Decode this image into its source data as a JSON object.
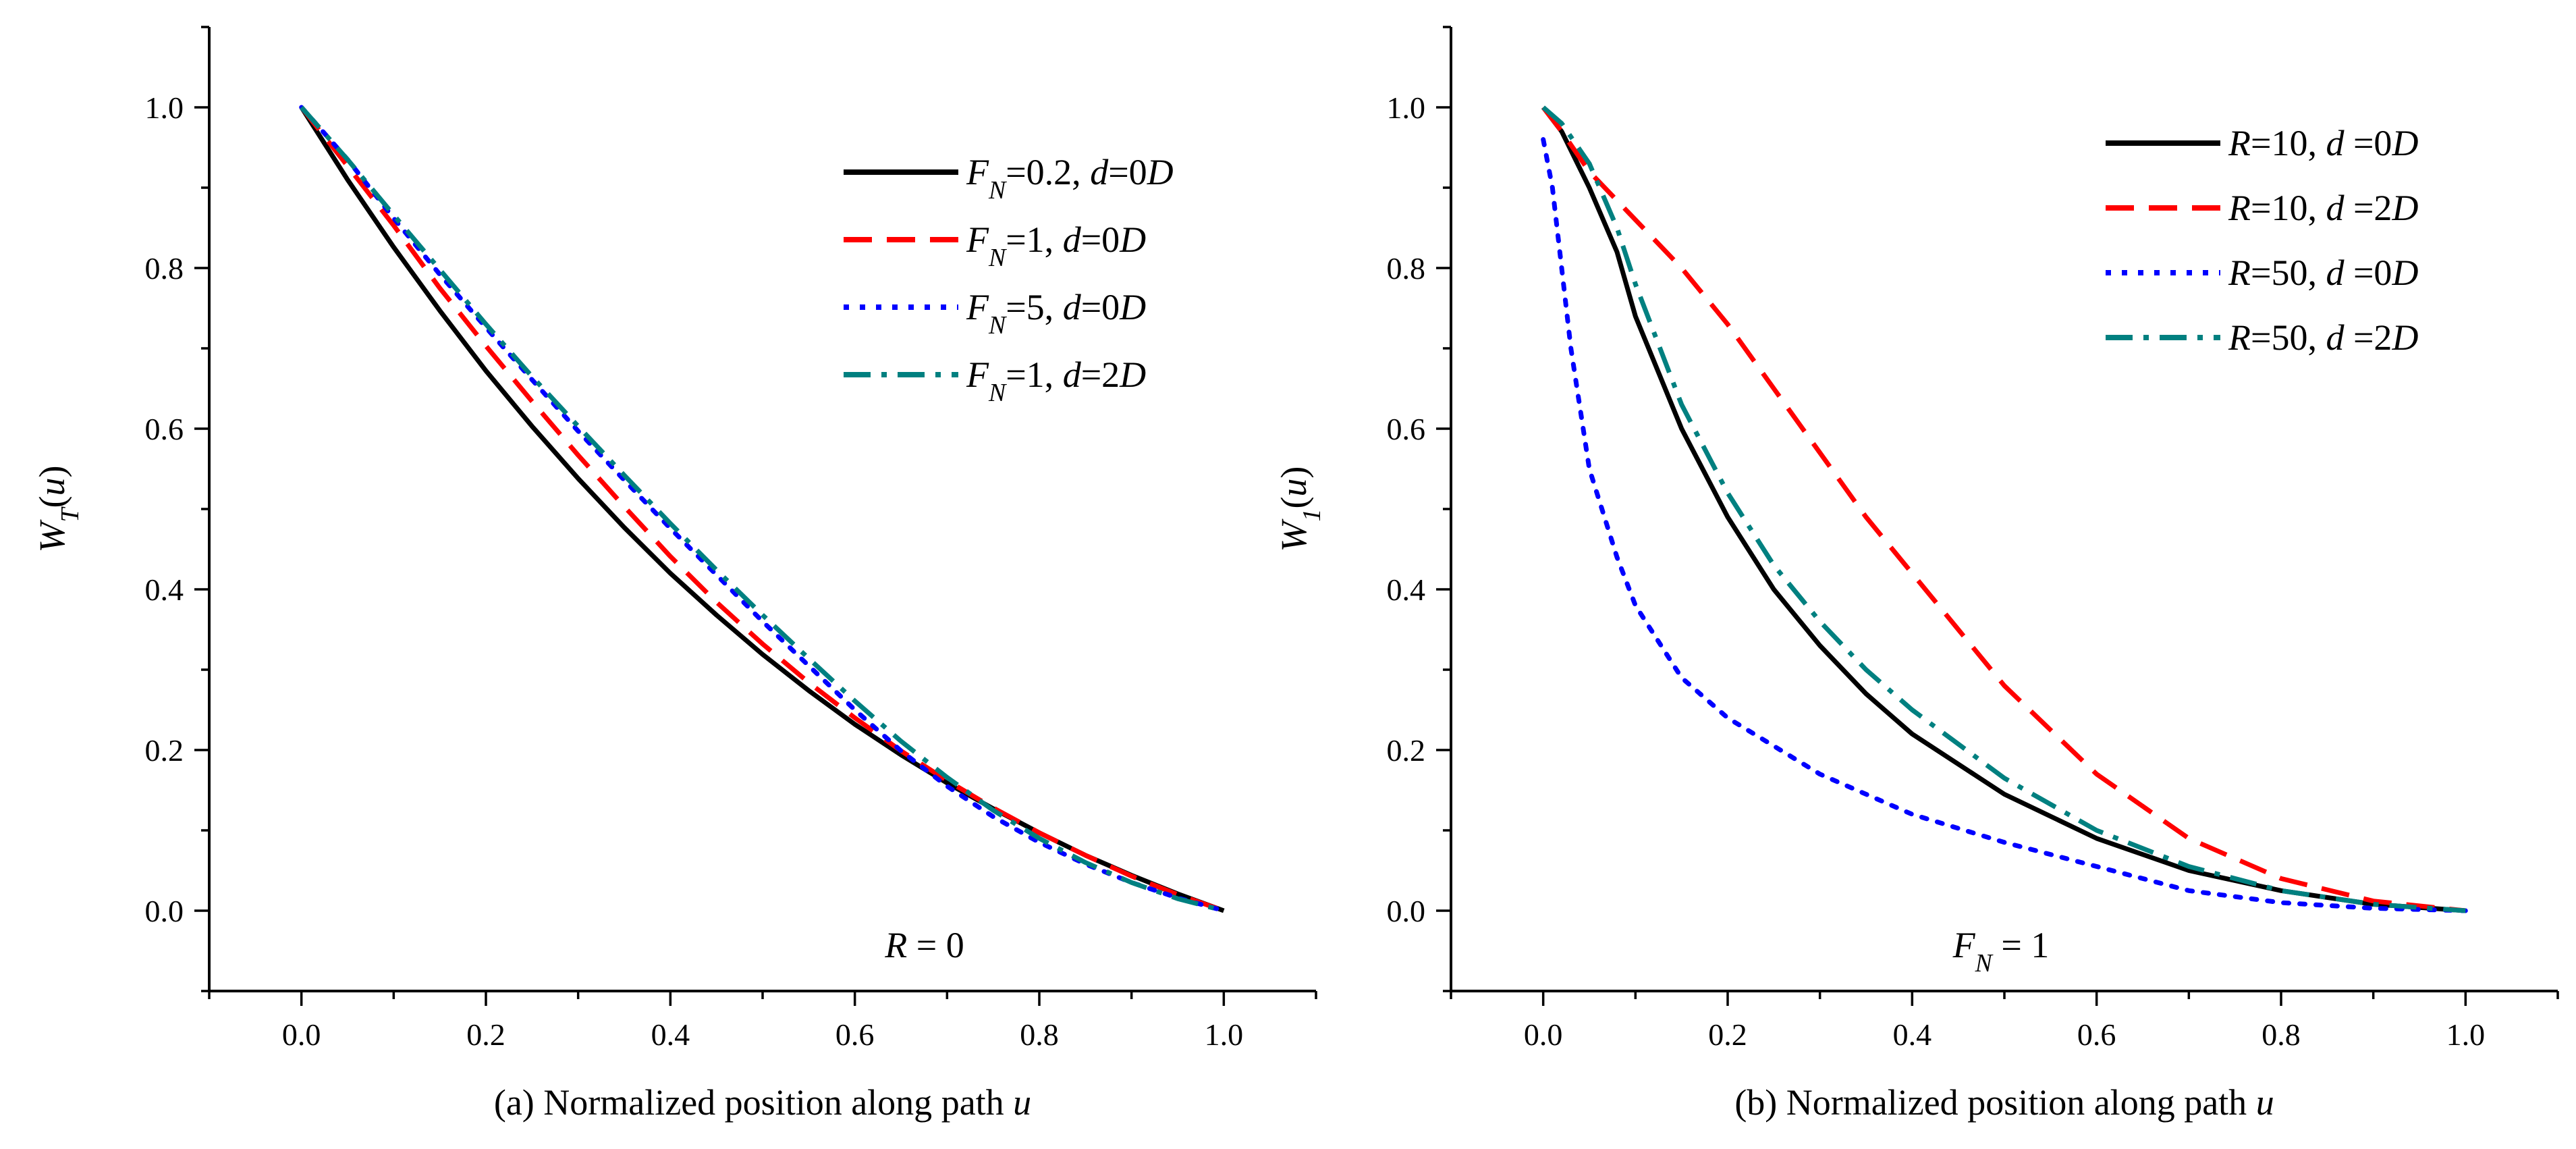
{
  "chart_data": [
    {
      "type": "line",
      "panel": "a",
      "xlabel": "(a) Normalized position along path u",
      "ylabel": "W_T(u)",
      "xlim": [
        -0.1,
        1.1
      ],
      "ylim": [
        -0.1,
        1.1
      ],
      "xticks": [
        "0.0",
        "0.2",
        "0.4",
        "0.6",
        "0.8",
        "1.0"
      ],
      "yticks": [
        "0.0",
        "0.2",
        "0.4",
        "0.6",
        "0.8",
        "1.0"
      ],
      "grid": false,
      "legend_position": "top-right",
      "annotation": "R = 0",
      "series": [
        {
          "name": "F_N=0.2, d=0D",
          "color": "#000000",
          "dash": "solid",
          "x": [
            0,
            0.05,
            0.1,
            0.15,
            0.2,
            0.25,
            0.3,
            0.35,
            0.4,
            0.45,
            0.5,
            0.55,
            0.6,
            0.65,
            0.7,
            0.75,
            0.8,
            0.85,
            0.9,
            0.95,
            1.0
          ],
          "y": [
            1.0,
            0.91,
            0.826,
            0.747,
            0.672,
            0.603,
            0.538,
            0.477,
            0.42,
            0.368,
            0.319,
            0.274,
            0.232,
            0.194,
            0.159,
            0.127,
            0.097,
            0.069,
            0.044,
            0.021,
            0.0
          ]
        },
        {
          "name": "F_N=1, d=0D",
          "color": "#ff0000",
          "dash": "dash",
          "x": [
            0,
            0.05,
            0.1,
            0.15,
            0.2,
            0.25,
            0.3,
            0.35,
            0.4,
            0.45,
            0.5,
            0.55,
            0.6,
            0.65,
            0.7,
            0.75,
            0.8,
            0.85,
            0.9,
            0.95,
            1.0
          ],
          "y": [
            1.0,
            0.927,
            0.853,
            0.775,
            0.703,
            0.634,
            0.567,
            0.503,
            0.441,
            0.384,
            0.332,
            0.284,
            0.24,
            0.199,
            0.162,
            0.128,
            0.097,
            0.069,
            0.043,
            0.02,
            0.0
          ]
        },
        {
          "name": "F_N=5, d=0D",
          "color": "#0000ff",
          "dash": "dot",
          "x": [
            0,
            0.05,
            0.1,
            0.15,
            0.2,
            0.25,
            0.3,
            0.35,
            0.4,
            0.45,
            0.5,
            0.55,
            0.6,
            0.65,
            0.7,
            0.75,
            0.8,
            0.85,
            0.9,
            0.95,
            1.0
          ],
          "y": [
            1.0,
            0.935,
            0.862,
            0.792,
            0.726,
            0.661,
            0.597,
            0.536,
            0.476,
            0.418,
            0.36,
            0.305,
            0.25,
            0.199,
            0.155,
            0.117,
            0.085,
            0.058,
            0.035,
            0.016,
            0.0
          ]
        },
        {
          "name": "F_N=1, d=2D",
          "color": "#008080",
          "dash": "dashdot",
          "x": [
            0,
            0.05,
            0.1,
            0.15,
            0.2,
            0.25,
            0.3,
            0.35,
            0.4,
            0.45,
            0.5,
            0.55,
            0.6,
            0.65,
            0.7,
            0.75,
            0.8,
            0.85,
            0.9,
            0.95,
            1.0
          ],
          "y": [
            1.0,
            0.935,
            0.866,
            0.798,
            0.73,
            0.665,
            0.603,
            0.542,
            0.482,
            0.424,
            0.368,
            0.314,
            0.261,
            0.211,
            0.166,
            0.125,
            0.09,
            0.06,
            0.035,
            0.015,
            0.0
          ]
        }
      ]
    },
    {
      "type": "line",
      "panel": "b",
      "xlabel": "(b) Normalized position along path u",
      "ylabel": "W_1(u)",
      "xlim": [
        -0.1,
        1.1
      ],
      "ylim": [
        -0.1,
        1.1
      ],
      "xticks": [
        "0.0",
        "0.2",
        "0.4",
        "0.6",
        "0.8",
        "1.0"
      ],
      "yticks": [
        "0.0",
        "0.2",
        "0.4",
        "0.6",
        "0.8",
        "1.0"
      ],
      "grid": false,
      "legend_position": "top-right",
      "annotation": "F_N = 1",
      "series": [
        {
          "name": "R=10, d =0D",
          "color": "#000000",
          "dash": "solid",
          "x": [
            0,
            0.02,
            0.05,
            0.08,
            0.1,
            0.15,
            0.2,
            0.25,
            0.3,
            0.35,
            0.4,
            0.5,
            0.6,
            0.7,
            0.8,
            0.9,
            1.0
          ],
          "y": [
            1.0,
            0.97,
            0.9,
            0.82,
            0.74,
            0.6,
            0.49,
            0.4,
            0.33,
            0.27,
            0.22,
            0.145,
            0.09,
            0.05,
            0.025,
            0.008,
            0.0
          ]
        },
        {
          "name": "R=10, d =2D",
          "color": "#ff0000",
          "dash": "dash",
          "x": [
            0,
            0.02,
            0.05,
            0.1,
            0.15,
            0.2,
            0.25,
            0.3,
            0.35,
            0.4,
            0.45,
            0.5,
            0.6,
            0.7,
            0.8,
            0.9,
            1.0
          ],
          "y": [
            1.0,
            0.97,
            0.92,
            0.86,
            0.8,
            0.73,
            0.65,
            0.57,
            0.49,
            0.42,
            0.35,
            0.28,
            0.17,
            0.09,
            0.04,
            0.012,
            0.0
          ]
        },
        {
          "name": "R=50, d =0D",
          "color": "#0000ff",
          "dash": "dot",
          "x": [
            0,
            0.01,
            0.02,
            0.03,
            0.05,
            0.08,
            0.1,
            0.15,
            0.2,
            0.3,
            0.4,
            0.5,
            0.6,
            0.7,
            0.8,
            0.9,
            1.0
          ],
          "y": [
            0.96,
            0.9,
            0.8,
            0.7,
            0.55,
            0.44,
            0.38,
            0.29,
            0.24,
            0.17,
            0.12,
            0.085,
            0.055,
            0.025,
            0.01,
            0.003,
            0.0
          ]
        },
        {
          "name": "R=50, d =2D",
          "color": "#008080",
          "dash": "dashdot",
          "x": [
            0,
            0.02,
            0.05,
            0.08,
            0.1,
            0.15,
            0.2,
            0.25,
            0.3,
            0.35,
            0.4,
            0.5,
            0.6,
            0.7,
            0.8,
            0.9,
            1.0
          ],
          "y": [
            1.0,
            0.98,
            0.93,
            0.85,
            0.78,
            0.63,
            0.52,
            0.43,
            0.36,
            0.3,
            0.25,
            0.165,
            0.1,
            0.055,
            0.025,
            0.008,
            0.0
          ]
        }
      ]
    }
  ]
}
